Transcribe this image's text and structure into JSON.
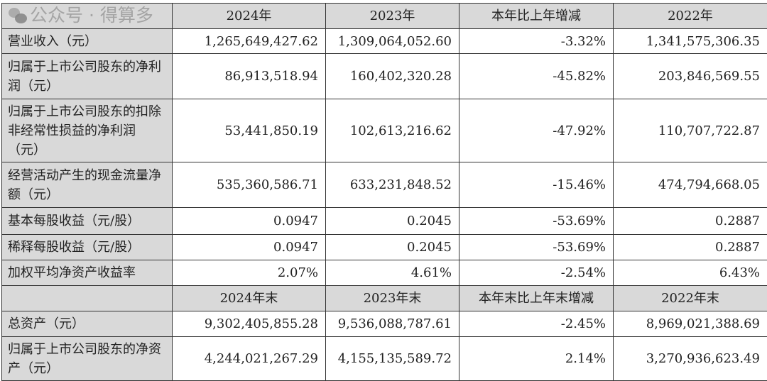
{
  "header": [
    "",
    "2024年",
    "2023年",
    "本年比上年增减",
    "2022年"
  ],
  "rows": [
    {
      "label": "营业收入（元）",
      "values": [
        "1,265,649,427.62",
        "1,309,064,052.60",
        "-3.32%",
        "1,341,575,306.35"
      ]
    },
    {
      "label": "归属于上市公司股东的净利润（元）",
      "values": [
        "86,913,518.94",
        "160,402,320.28",
        "-45.82%",
        "203,846,569.55"
      ]
    },
    {
      "label": "归属于上市公司股东的扣除非经常性损益的净利润（元）",
      "values": [
        "53,441,850.19",
        "102,613,216.62",
        "-47.92%",
        "110,707,722.87"
      ]
    },
    {
      "label": "经营活动产生的现金流量净额（元）",
      "values": [
        "535,360,586.71",
        "633,231,848.52",
        "-15.46%",
        "474,794,668.05"
      ]
    },
    {
      "label": "基本每股收益（元/股）",
      "values": [
        "0.0947",
        "0.2045",
        "-53.69%",
        "0.2887"
      ]
    },
    {
      "label": "稀释每股收益（元/股）",
      "values": [
        "0.0947",
        "0.2045",
        "-53.69%",
        "0.2887"
      ]
    },
    {
      "label": "加权平均净资产收益率",
      "values": [
        "2.07%",
        "4.61%",
        "-2.54%",
        "6.43%"
      ]
    }
  ],
  "header2": [
    "",
    "2024年末",
    "2023年末",
    "本年末比上年末增减",
    "2022年末"
  ],
  "rows2": [
    {
      "label": "总资产（元）",
      "values": [
        "9,302,405,855.28",
        "9,536,088,787.61",
        "-2.45%",
        "8,969,021,388.69"
      ]
    },
    {
      "label": "归属于上市公司股东的净资产（元）",
      "values": [
        "4,244,021,267.29",
        "4,155,135,589.72",
        "2.14%",
        "3,270,936,623.49"
      ]
    }
  ],
  "watermark": {
    "text": "公众号 · 得算多",
    "icon": "wechat-icon"
  }
}
